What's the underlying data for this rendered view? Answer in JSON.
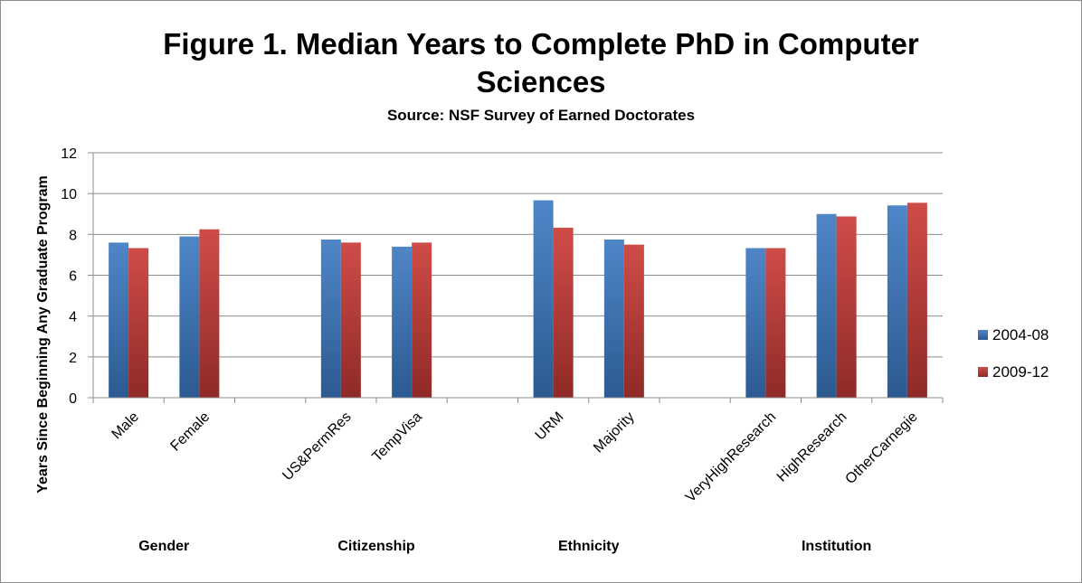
{
  "chart_data": {
    "type": "bar",
    "title": "Figure 1. Median Years to Complete PhD in Computer Sciences",
    "title_lines": [
      "Figure 1. Median Years to Complete PhD in Computer",
      "Sciences"
    ],
    "subtitle": "Source: NSF Survey of Earned Doctorates",
    "ylabel": "Years Since Beginning Any Graduate Program",
    "xlabel": "",
    "ylim": [
      0,
      12
    ],
    "yticks": [
      0,
      2,
      4,
      6,
      8,
      10,
      12
    ],
    "grid": true,
    "legend_position": "right",
    "categories": [
      "Male",
      "Female",
      "",
      "US&PermRes",
      "TempVisa",
      "",
      "URM",
      "Majority",
      "",
      "VeryHighResearch",
      "HighResearch",
      "OtherCarnegie"
    ],
    "groups": [
      "Gender",
      "Citizenship",
      "Ethnicity",
      "Institution"
    ],
    "series": [
      {
        "name": "2004-08",
        "color": "#4a7ebb",
        "values": [
          7.6,
          7.9,
          null,
          7.75,
          7.4,
          null,
          9.67,
          7.75,
          null,
          7.33,
          9.0,
          9.42
        ]
      },
      {
        "name": "2009-12",
        "color": "#be4b48",
        "values": [
          7.33,
          8.25,
          null,
          7.6,
          7.6,
          null,
          8.33,
          7.5,
          null,
          7.33,
          8.88,
          9.55
        ]
      }
    ]
  }
}
